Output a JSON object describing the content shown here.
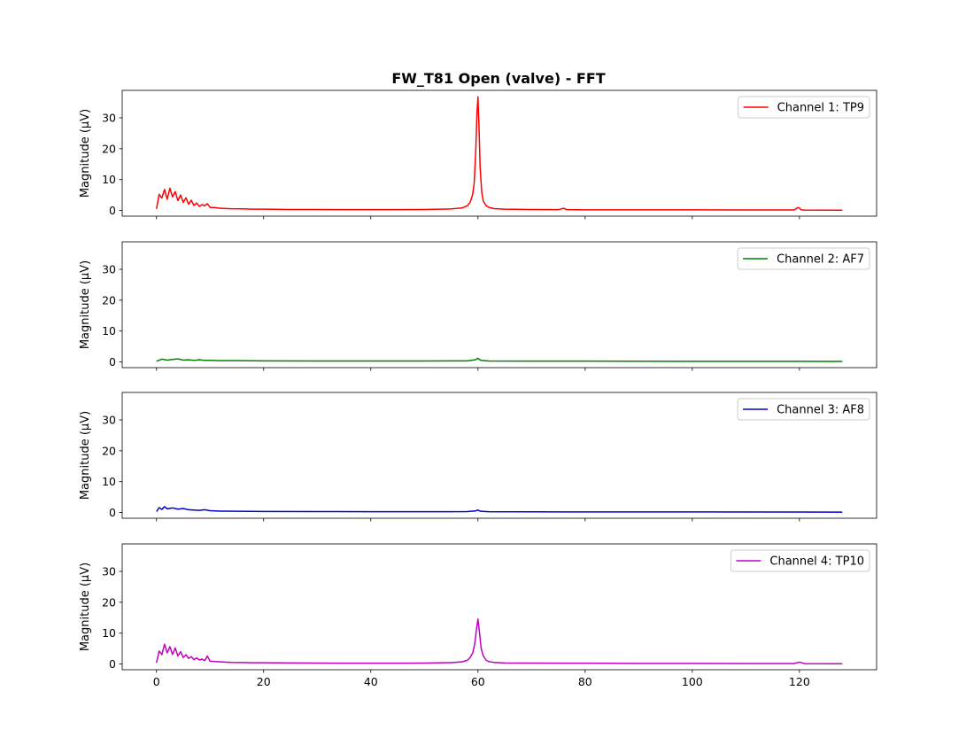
{
  "chart_data": {
    "type": "line",
    "title": "FW_T81 Open (valve) - FFT",
    "xlabel": "",
    "ylabel": "Magnitude (μV)",
    "xlim": [
      -6.4,
      134.4
    ],
    "ylim": [
      -1.85,
      38.9
    ],
    "xticks": [
      0,
      20,
      40,
      60,
      80,
      100,
      120
    ],
    "yticks": [
      0,
      10,
      20,
      30
    ],
    "legend_position": "upper right",
    "grid": false,
    "panels": [
      {
        "name": "Channel 1: TP9",
        "color": "#ff0000",
        "x": [
          0,
          0.5,
          1,
          1.5,
          2,
          2.5,
          3,
          3.5,
          4,
          4.5,
          5,
          5.5,
          6,
          6.5,
          7,
          7.5,
          8,
          8.5,
          9,
          9.5,
          10,
          11,
          12,
          14,
          16,
          18,
          20,
          25,
          30,
          35,
          40,
          45,
          50,
          55,
          57,
          58,
          58.5,
          59,
          59.3,
          59.6,
          59.8,
          60,
          60.2,
          60.4,
          60.7,
          61,
          61.5,
          62,
          63,
          65,
          70,
          75,
          76,
          76.5,
          77,
          80,
          90,
          100,
          110,
          119,
          119.7,
          120,
          120.3,
          121,
          128
        ],
        "y": [
          0.5,
          5.2,
          4.0,
          6.8,
          3.6,
          7.2,
          4.4,
          6.1,
          3.2,
          5.0,
          2.6,
          4.1,
          2.0,
          3.3,
          1.6,
          2.4,
          1.3,
          1.9,
          1.5,
          2.2,
          1.0,
          0.9,
          0.7,
          0.55,
          0.5,
          0.42,
          0.4,
          0.32,
          0.3,
          0.28,
          0.26,
          0.27,
          0.3,
          0.5,
          0.8,
          1.5,
          2.5,
          5.0,
          9.0,
          20.0,
          31.0,
          36.8,
          27.0,
          14.0,
          6.0,
          3.0,
          1.6,
          1.0,
          0.6,
          0.4,
          0.3,
          0.25,
          0.7,
          0.3,
          0.25,
          0.2,
          0.2,
          0.18,
          0.15,
          0.15,
          0.9,
          0.8,
          0.2,
          0.12,
          0.1
        ]
      },
      {
        "name": "Channel 2: AF7",
        "color": "#008000",
        "x": [
          0,
          1,
          2,
          3,
          4,
          5,
          6,
          7,
          8,
          9,
          10,
          12,
          15,
          20,
          30,
          40,
          50,
          58,
          59.5,
          60,
          60.5,
          62,
          70,
          80,
          100,
          120,
          128
        ],
        "y": [
          0.2,
          0.9,
          0.6,
          0.8,
          1.0,
          0.6,
          0.7,
          0.5,
          0.7,
          0.5,
          0.5,
          0.4,
          0.4,
          0.35,
          0.3,
          0.3,
          0.3,
          0.35,
          0.7,
          1.2,
          0.5,
          0.3,
          0.28,
          0.25,
          0.2,
          0.18,
          0.15
        ]
      },
      {
        "name": "Channel 3: AF8",
        "color": "#0000cc",
        "x": [
          0,
          0.5,
          1,
          1.5,
          2,
          3,
          4,
          5,
          6,
          7,
          8,
          9,
          10,
          12,
          15,
          20,
          30,
          40,
          50,
          58,
          59.5,
          60,
          60.5,
          62,
          70,
          80,
          100,
          120,
          128
        ],
        "y": [
          0.3,
          1.6,
          1.0,
          1.9,
          1.2,
          1.5,
          1.1,
          1.3,
          0.9,
          0.8,
          0.7,
          0.9,
          0.6,
          0.45,
          0.4,
          0.35,
          0.3,
          0.28,
          0.26,
          0.3,
          0.5,
          0.8,
          0.4,
          0.25,
          0.22,
          0.2,
          0.18,
          0.15,
          0.12
        ]
      },
      {
        "name": "Channel 4: TP10",
        "color": "#bf00bf",
        "x": [
          0,
          0.5,
          1,
          1.5,
          2,
          2.5,
          3,
          3.5,
          4,
          4.5,
          5,
          5.5,
          6,
          6.5,
          7,
          7.5,
          8,
          8.5,
          9,
          9.5,
          10,
          11,
          12,
          14,
          16,
          18,
          20,
          25,
          30,
          35,
          40,
          45,
          50,
          55,
          57,
          58,
          58.5,
          59,
          59.4,
          59.7,
          60,
          60.3,
          60.6,
          61,
          61.5,
          62,
          63,
          65,
          70,
          80,
          90,
          100,
          110,
          119,
          120,
          121,
          128
        ],
        "y": [
          0.4,
          4.2,
          3.0,
          6.4,
          3.6,
          5.6,
          3.1,
          5.2,
          2.6,
          4.0,
          2.1,
          3.0,
          1.8,
          2.4,
          1.4,
          2.0,
          1.3,
          1.6,
          1.1,
          2.6,
          0.9,
          0.8,
          0.7,
          0.5,
          0.48,
          0.42,
          0.4,
          0.35,
          0.3,
          0.28,
          0.26,
          0.27,
          0.3,
          0.45,
          0.7,
          1.2,
          2.0,
          3.5,
          6.5,
          11.0,
          14.6,
          10.0,
          5.0,
          2.6,
          1.3,
          0.8,
          0.5,
          0.35,
          0.3,
          0.25,
          0.2,
          0.18,
          0.15,
          0.15,
          0.6,
          0.12,
          0.1
        ]
      }
    ]
  }
}
